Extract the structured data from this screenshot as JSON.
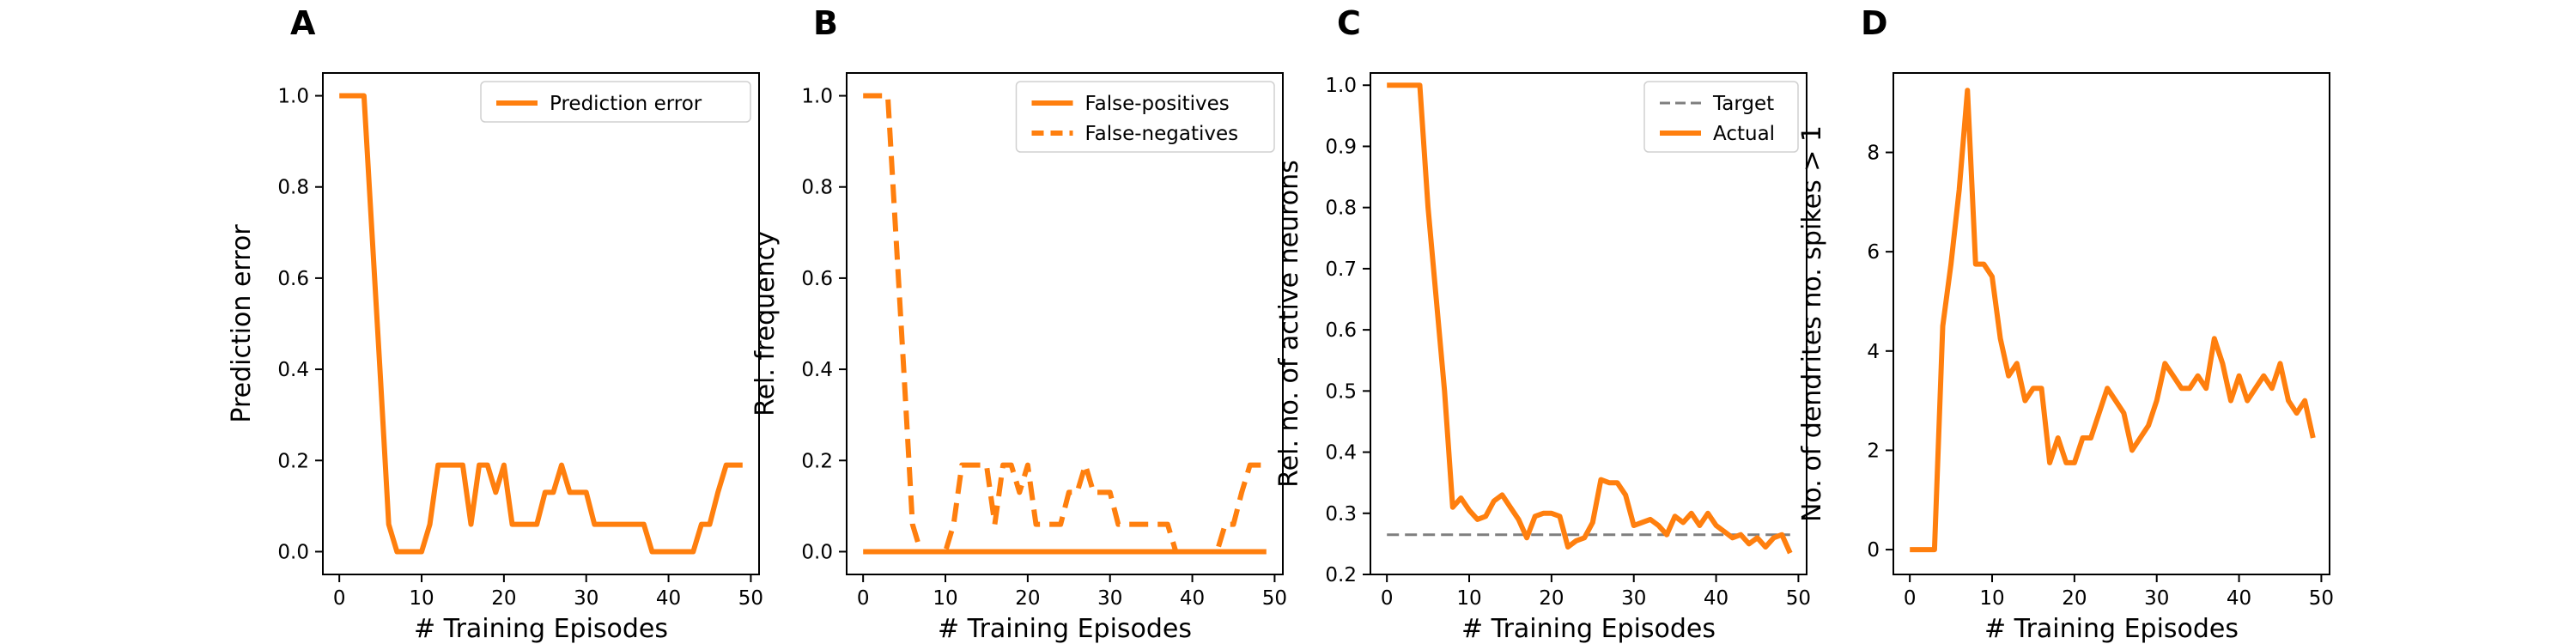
{
  "colors": {
    "orange": "#ff7f0e",
    "target_gray": "#7f7f7f"
  },
  "chart_data": [
    {
      "panel": "A",
      "type": "line",
      "xlabel": "# Training Episodes",
      "ylabel": "Prediction error",
      "xlim": [
        -2,
        51
      ],
      "ylim": [
        -0.05,
        1.05
      ],
      "xticks": [
        0,
        10,
        20,
        30,
        40,
        50
      ],
      "xtick_labels": [
        "0",
        "10",
        "20",
        "30",
        "40",
        "50"
      ],
      "yticks": [
        0,
        0.2,
        0.4,
        0.6,
        0.8,
        1.0
      ],
      "ytick_labels": [
        "0.0",
        "0.2",
        "0.4",
        "0.6",
        "0.8",
        "1.0"
      ],
      "grid": false,
      "legend": "top-right",
      "x": [
        0,
        1,
        2,
        3,
        4,
        5,
        6,
        7,
        8,
        9,
        10,
        11,
        12,
        13,
        14,
        15,
        16,
        17,
        18,
        19,
        20,
        21,
        22,
        23,
        24,
        25,
        26,
        27,
        28,
        29,
        30,
        31,
        32,
        33,
        34,
        35,
        36,
        37,
        38,
        39,
        40,
        41,
        42,
        43,
        44,
        45,
        46,
        47,
        48,
        49
      ],
      "series": [
        {
          "name": "Prediction error",
          "style": "solid",
          "color": "#ff7f0e",
          "values": [
            1.0,
            1.0,
            1.0,
            1.0,
            0.69,
            0.38,
            0.06,
            0.0,
            0.0,
            0.0,
            0.0,
            0.06,
            0.19,
            0.19,
            0.19,
            0.19,
            0.06,
            0.19,
            0.19,
            0.13,
            0.19,
            0.06,
            0.06,
            0.06,
            0.06,
            0.13,
            0.13,
            0.19,
            0.13,
            0.13,
            0.13,
            0.06,
            0.06,
            0.06,
            0.06,
            0.06,
            0.06,
            0.06,
            0.0,
            0.0,
            0.0,
            0.0,
            0.0,
            0.0,
            0.06,
            0.06,
            0.13,
            0.19,
            0.19,
            0.19
          ]
        }
      ]
    },
    {
      "panel": "B",
      "type": "line",
      "xlabel": "# Training Episodes",
      "ylabel": "Rel. frequency",
      "xlim": [
        -2,
        51
      ],
      "ylim": [
        -0.05,
        1.05
      ],
      "xticks": [
        0,
        10,
        20,
        30,
        40,
        50
      ],
      "xtick_labels": [
        "0",
        "10",
        "20",
        "30",
        "40",
        "50"
      ],
      "yticks": [
        0,
        0.2,
        0.4,
        0.6,
        0.8,
        1.0
      ],
      "ytick_labels": [
        "0.0",
        "0.2",
        "0.4",
        "0.6",
        "0.8",
        "1.0"
      ],
      "grid": false,
      "legend": "top-right",
      "x": [
        0,
        1,
        2,
        3,
        4,
        5,
        6,
        7,
        8,
        9,
        10,
        11,
        12,
        13,
        14,
        15,
        16,
        17,
        18,
        19,
        20,
        21,
        22,
        23,
        24,
        25,
        26,
        27,
        28,
        29,
        30,
        31,
        32,
        33,
        34,
        35,
        36,
        37,
        38,
        39,
        40,
        41,
        42,
        43,
        44,
        45,
        46,
        47,
        48,
        49
      ],
      "series": [
        {
          "name": "False-positives",
          "style": "solid",
          "color": "#ff7f0e",
          "values": [
            0,
            0,
            0,
            0,
            0,
            0,
            0,
            0,
            0,
            0,
            0,
            0,
            0,
            0,
            0,
            0,
            0,
            0,
            0,
            0,
            0,
            0,
            0,
            0,
            0,
            0,
            0,
            0,
            0,
            0,
            0,
            0,
            0,
            0,
            0,
            0,
            0,
            0,
            0,
            0,
            0,
            0,
            0,
            0,
            0,
            0,
            0,
            0,
            0,
            0
          ]
        },
        {
          "name": "False-negatives",
          "style": "dashed",
          "color": "#ff7f0e",
          "values": [
            1.0,
            1.0,
            1.0,
            1.0,
            0.69,
            0.38,
            0.06,
            0.0,
            0.0,
            0.0,
            0.0,
            0.06,
            0.19,
            0.19,
            0.19,
            0.19,
            0.06,
            0.19,
            0.19,
            0.13,
            0.19,
            0.06,
            0.06,
            0.06,
            0.06,
            0.13,
            0.13,
            0.19,
            0.13,
            0.13,
            0.13,
            0.06,
            0.06,
            0.06,
            0.06,
            0.06,
            0.06,
            0.06,
            0.0,
            0.0,
            0.0,
            0.0,
            0.0,
            0.0,
            0.06,
            0.06,
            0.13,
            0.19,
            0.19,
            0.19
          ]
        }
      ]
    },
    {
      "panel": "C",
      "type": "line",
      "xlabel": "# Training Episodes",
      "ylabel": "Rel. no. of active neurons",
      "xlim": [
        -2,
        51
      ],
      "ylim": [
        0.2,
        1.02
      ],
      "xticks": [
        0,
        10,
        20,
        30,
        40,
        50
      ],
      "xtick_labels": [
        "0",
        "10",
        "20",
        "30",
        "40",
        "50"
      ],
      "yticks": [
        0.2,
        0.3,
        0.4,
        0.5,
        0.6,
        0.7,
        0.8,
        0.9,
        1.0
      ],
      "ytick_labels": [
        "0.2",
        "0.3",
        "0.4",
        "0.5",
        "0.6",
        "0.7",
        "0.8",
        "0.9",
        "1.0"
      ],
      "grid": false,
      "legend": "top-right",
      "x": [
        0,
        1,
        2,
        3,
        4,
        5,
        6,
        7,
        8,
        9,
        10,
        11,
        12,
        13,
        14,
        15,
        16,
        17,
        18,
        19,
        20,
        21,
        22,
        23,
        24,
        25,
        26,
        27,
        28,
        29,
        30,
        31,
        32,
        33,
        34,
        35,
        36,
        37,
        38,
        39,
        40,
        41,
        42,
        43,
        44,
        45,
        46,
        47,
        48,
        49
      ],
      "series": [
        {
          "name": "Target",
          "style": "dashed",
          "color": "#7f7f7f",
          "values": [
            0.265,
            0.265,
            0.265,
            0.265,
            0.265,
            0.265,
            0.265,
            0.265,
            0.265,
            0.265,
            0.265,
            0.265,
            0.265,
            0.265,
            0.265,
            0.265,
            0.265,
            0.265,
            0.265,
            0.265,
            0.265,
            0.265,
            0.265,
            0.265,
            0.265,
            0.265,
            0.265,
            0.265,
            0.265,
            0.265,
            0.265,
            0.265,
            0.265,
            0.265,
            0.265,
            0.265,
            0.265,
            0.265,
            0.265,
            0.265,
            0.265,
            0.265,
            0.265,
            0.265,
            0.265,
            0.265,
            0.265,
            0.265,
            0.265,
            0.265
          ]
        },
        {
          "name": "Actual",
          "style": "solid",
          "color": "#ff7f0e",
          "values": [
            1.0,
            1.0,
            1.0,
            1.0,
            1.0,
            0.8,
            0.65,
            0.5,
            0.31,
            0.325,
            0.305,
            0.29,
            0.295,
            0.32,
            0.33,
            0.31,
            0.29,
            0.26,
            0.295,
            0.3,
            0.3,
            0.295,
            0.245,
            0.255,
            0.26,
            0.285,
            0.355,
            0.35,
            0.35,
            0.33,
            0.28,
            0.285,
            0.29,
            0.28,
            0.265,
            0.295,
            0.285,
            0.3,
            0.28,
            0.3,
            0.28,
            0.27,
            0.26,
            0.265,
            0.25,
            0.26,
            0.245,
            0.26,
            0.265,
            0.235
          ]
        }
      ]
    },
    {
      "panel": "D",
      "type": "line",
      "xlabel": "# Training Episodes",
      "ylabel": "No. of dendrites no. spikes > 1",
      "xlim": [
        -2,
        51
      ],
      "ylim": [
        -0.5,
        9.6
      ],
      "xticks": [
        0,
        10,
        20,
        30,
        40,
        50
      ],
      "xtick_labels": [
        "0",
        "10",
        "20",
        "30",
        "40",
        "50"
      ],
      "yticks": [
        0,
        2,
        4,
        6,
        8
      ],
      "ytick_labels": [
        "0",
        "2",
        "4",
        "6",
        "8"
      ],
      "grid": false,
      "legend": null,
      "x": [
        0,
        1,
        2,
        3,
        4,
        5,
        6,
        7,
        8,
        9,
        10,
        11,
        12,
        13,
        14,
        15,
        16,
        17,
        18,
        19,
        20,
        21,
        22,
        23,
        24,
        25,
        26,
        27,
        28,
        29,
        30,
        31,
        32,
        33,
        34,
        35,
        36,
        37,
        38,
        39,
        40,
        41,
        42,
        43,
        44,
        45,
        46,
        47,
        48,
        49
      ],
      "series": [
        {
          "name": "",
          "style": "solid",
          "color": "#ff7f0e",
          "values": [
            0,
            0,
            0,
            0,
            4.5,
            5.75,
            7.25,
            9.25,
            5.75,
            5.75,
            5.5,
            4.25,
            3.5,
            3.75,
            3.0,
            3.25,
            3.25,
            1.75,
            2.25,
            1.75,
            1.75,
            2.25,
            2.25,
            2.75,
            3.25,
            3.0,
            2.75,
            2.0,
            2.25,
            2.5,
            3.0,
            3.75,
            3.5,
            3.25,
            3.25,
            3.5,
            3.25,
            4.25,
            3.75,
            3.0,
            3.5,
            3.0,
            3.25,
            3.5,
            3.25,
            3.75,
            3.0,
            2.75,
            3.0,
            2.25
          ]
        }
      ]
    }
  ]
}
